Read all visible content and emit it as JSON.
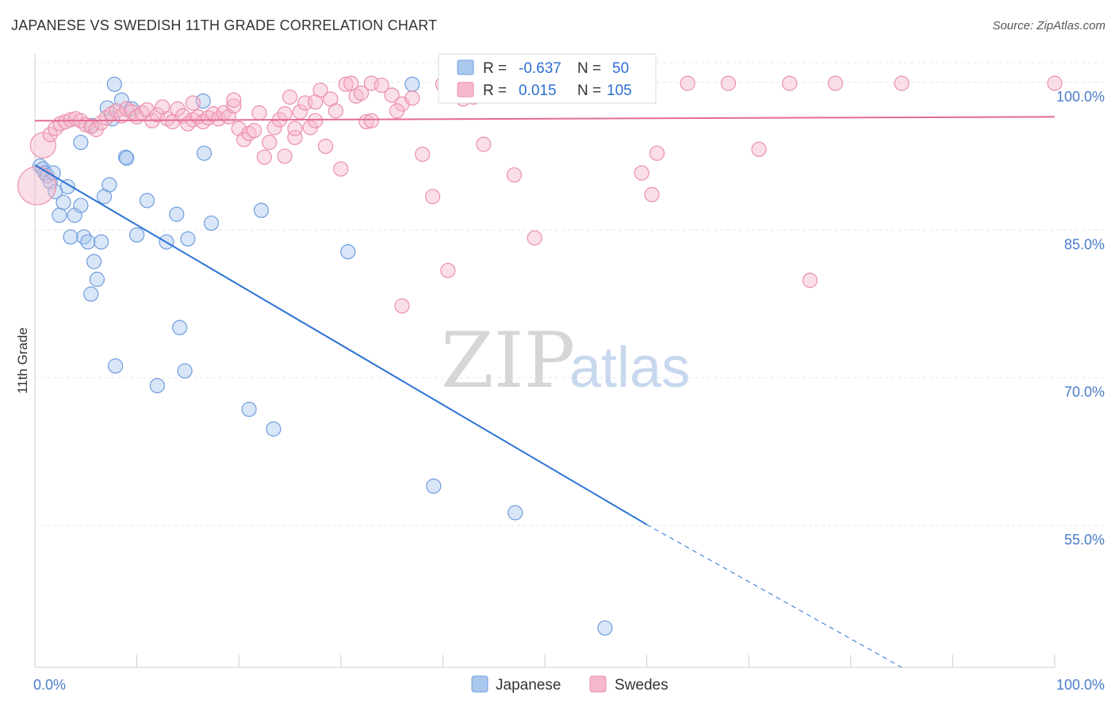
{
  "title": "JAPANESE VS SWEDISH 11TH GRADE CORRELATION CHART",
  "source": "Source: ZipAtlas.com",
  "watermark": {
    "part1": "ZIP",
    "part2": "atlas"
  },
  "legend": {
    "rows": [
      {
        "r_label": "R =",
        "r_value": "-0.637",
        "n_label": "N =",
        "n_value": "50",
        "color": "#aac7ee",
        "stroke": "#6f9ddf"
      },
      {
        "r_label": "R =",
        "r_value": "0.015",
        "n_label": "N =",
        "n_value": "105",
        "color": "#f6b8cb",
        "stroke": "#ea8fab"
      }
    ]
  },
  "bottom_legend": [
    {
      "label": "Japanese",
      "color": "#aac7ee",
      "stroke": "#6f9ddf"
    },
    {
      "label": "Swedes",
      "color": "#f6b8cb",
      "stroke": "#ea8fab"
    }
  ],
  "chart_data": {
    "type": "scatter",
    "xlabel": "",
    "ylabel": "11th Grade",
    "xlim": [
      0,
      100
    ],
    "ylim": [
      40.6,
      102
    ],
    "x_tick_labels": [
      {
        "value": 0,
        "label": "0.0%"
      },
      {
        "value": 100,
        "label": "100.0%"
      }
    ],
    "y_tick_labels": [
      {
        "value": 100,
        "label": "100.0%"
      },
      {
        "value": 85,
        "label": "85.0%"
      },
      {
        "value": 70,
        "label": "70.0%"
      },
      {
        "value": 55,
        "label": "55.0%"
      }
    ],
    "grid": true,
    "legend_position": "top-center",
    "series": [
      {
        "name": "Japanese",
        "color": "#6f9ddf",
        "fill": "#aac7ee",
        "trend": {
          "x0": 0,
          "y0": 91.6,
          "x1": 60,
          "y1": 55.1,
          "dash_to_x": 85,
          "dash_to_y": 40.6,
          "color": "#2a72d4"
        },
        "points": [
          [
            0.5,
            91.5
          ],
          [
            0.8,
            91.2
          ],
          [
            1.0,
            90.8
          ],
          [
            1.2,
            90.5
          ],
          [
            1.5,
            89.9
          ],
          [
            1.8,
            90.8
          ],
          [
            2.0,
            88.9
          ],
          [
            2.4,
            86.5
          ],
          [
            2.8,
            87.8
          ],
          [
            3.2,
            89.4
          ],
          [
            3.5,
            84.3
          ],
          [
            3.9,
            86.5
          ],
          [
            4.5,
            87.5
          ],
          [
            4.8,
            84.3
          ],
          [
            5.2,
            83.8
          ],
          [
            5.6,
            95.6
          ],
          [
            5.5,
            78.5
          ],
          [
            5.8,
            81.8
          ],
          [
            6.1,
            80.0
          ],
          [
            6.8,
            88.4
          ],
          [
            6.5,
            83.8
          ],
          [
            7.1,
            97.4
          ],
          [
            7.3,
            89.6
          ],
          [
            7.6,
            96.3
          ],
          [
            7.8,
            99.8
          ],
          [
            7.9,
            71.2
          ],
          [
            8.5,
            98.2
          ],
          [
            8.9,
            92.4
          ],
          [
            9.0,
            92.3
          ],
          [
            9.5,
            97.3
          ],
          [
            10.0,
            84.5
          ],
          [
            11.0,
            88.0
          ],
          [
            12.0,
            69.2
          ],
          [
            12.9,
            83.8
          ],
          [
            13.9,
            86.6
          ],
          [
            14.2,
            75.1
          ],
          [
            14.7,
            70.7
          ],
          [
            15.0,
            84.1
          ],
          [
            16.5,
            98.1
          ],
          [
            16.6,
            92.8
          ],
          [
            17.3,
            85.7
          ],
          [
            21.0,
            66.8
          ],
          [
            22.2,
            87.0
          ],
          [
            23.4,
            64.8
          ],
          [
            4.5,
            93.9
          ],
          [
            30.7,
            82.8
          ],
          [
            37.0,
            99.8
          ],
          [
            39.1,
            59.0
          ],
          [
            47.1,
            56.3
          ],
          [
            55.9,
            44.6
          ]
        ]
      },
      {
        "name": "Swedes",
        "color": "#ea8fab",
        "fill": "#f6b8cb",
        "trend": {
          "x0": 0,
          "y0": 96.1,
          "x1": 100,
          "y1": 96.5,
          "color": "#e36b93"
        },
        "points": [
          [
            0.2,
            89.5
          ],
          [
            0.8,
            93.6
          ],
          [
            1.5,
            94.7
          ],
          [
            2.0,
            95.3
          ],
          [
            2.5,
            95.8
          ],
          [
            3.0,
            96.0
          ],
          [
            3.5,
            96.2
          ],
          [
            4.0,
            96.3
          ],
          [
            4.5,
            96.1
          ],
          [
            5.0,
            95.7
          ],
          [
            5.5,
            95.5
          ],
          [
            6.0,
            95.2
          ],
          [
            6.5,
            95.9
          ],
          [
            7.0,
            96.4
          ],
          [
            7.5,
            96.8
          ],
          [
            8.0,
            97.1
          ],
          [
            8.5,
            96.6
          ],
          [
            9.0,
            97.3
          ],
          [
            9.5,
            97.0
          ],
          [
            10.0,
            96.5
          ],
          [
            10.5,
            96.9
          ],
          [
            11.0,
            97.2
          ],
          [
            11.5,
            96.1
          ],
          [
            12.0,
            96.7
          ],
          [
            12.5,
            97.5
          ],
          [
            13.0,
            96.3
          ],
          [
            13.5,
            96.0
          ],
          [
            14.0,
            97.3
          ],
          [
            14.5,
            96.6
          ],
          [
            15.0,
            95.8
          ],
          [
            15.5,
            96.2
          ],
          [
            16.0,
            96.5
          ],
          [
            16.5,
            96.0
          ],
          [
            17.0,
            96.4
          ],
          [
            17.5,
            96.8
          ],
          [
            18.0,
            96.3
          ],
          [
            18.5,
            96.9
          ],
          [
            19.0,
            96.5
          ],
          [
            19.5,
            97.6
          ],
          [
            20.0,
            95.3
          ],
          [
            20.5,
            94.2
          ],
          [
            21.0,
            94.8
          ],
          [
            21.5,
            95.1
          ],
          [
            22.0,
            96.9
          ],
          [
            22.5,
            92.4
          ],
          [
            23.0,
            93.9
          ],
          [
            23.5,
            95.4
          ],
          [
            24.0,
            96.2
          ],
          [
            24.5,
            96.8
          ],
          [
            25.0,
            98.5
          ],
          [
            25.5,
            94.4
          ],
          [
            26.0,
            97.0
          ],
          [
            26.5,
            97.9
          ],
          [
            27.0,
            95.4
          ],
          [
            27.5,
            98.0
          ],
          [
            28.0,
            99.2
          ],
          [
            28.5,
            93.5
          ],
          [
            29.0,
            98.3
          ],
          [
            29.5,
            97.1
          ],
          [
            30.0,
            91.2
          ],
          [
            30.5,
            99.8
          ],
          [
            31.0,
            99.9
          ],
          [
            31.5,
            98.6
          ],
          [
            32.0,
            98.9
          ],
          [
            32.5,
            96.0
          ],
          [
            33.0,
            99.9
          ],
          [
            34.0,
            99.7
          ],
          [
            35.0,
            98.7
          ],
          [
            36.0,
            97.8
          ],
          [
            37.0,
            98.4
          ],
          [
            38.0,
            92.7
          ],
          [
            39.0,
            88.4
          ],
          [
            40.0,
            99.8
          ],
          [
            41.0,
            99.9
          ],
          [
            42.0,
            98.3
          ],
          [
            43.0,
            98.5
          ],
          [
            44.0,
            93.7
          ],
          [
            45.0,
            99.9
          ],
          [
            46.0,
            99.8
          ],
          [
            47.0,
            90.6
          ],
          [
            48.0,
            99.9
          ],
          [
            49.0,
            84.2
          ],
          [
            50.0,
            99.9
          ],
          [
            52.0,
            99.8
          ],
          [
            56.0,
            99.8
          ],
          [
            59.5,
            90.8
          ],
          [
            60.5,
            88.6
          ],
          [
            61.0,
            92.8
          ],
          [
            64.0,
            99.9
          ],
          [
            68.0,
            99.9
          ],
          [
            71.0,
            93.2
          ],
          [
            74.0,
            99.9
          ],
          [
            76.0,
            79.9
          ],
          [
            78.5,
            99.9
          ],
          [
            85.0,
            99.9
          ],
          [
            100.0,
            99.9
          ],
          [
            36.0,
            77.3
          ],
          [
            40.5,
            80.9
          ],
          [
            33.0,
            96.1
          ],
          [
            15.5,
            97.9
          ],
          [
            19.5,
            98.2
          ],
          [
            35.5,
            97.1
          ],
          [
            24.5,
            92.5
          ],
          [
            25.5,
            95.3
          ],
          [
            27.5,
            96.1
          ]
        ]
      }
    ]
  }
}
